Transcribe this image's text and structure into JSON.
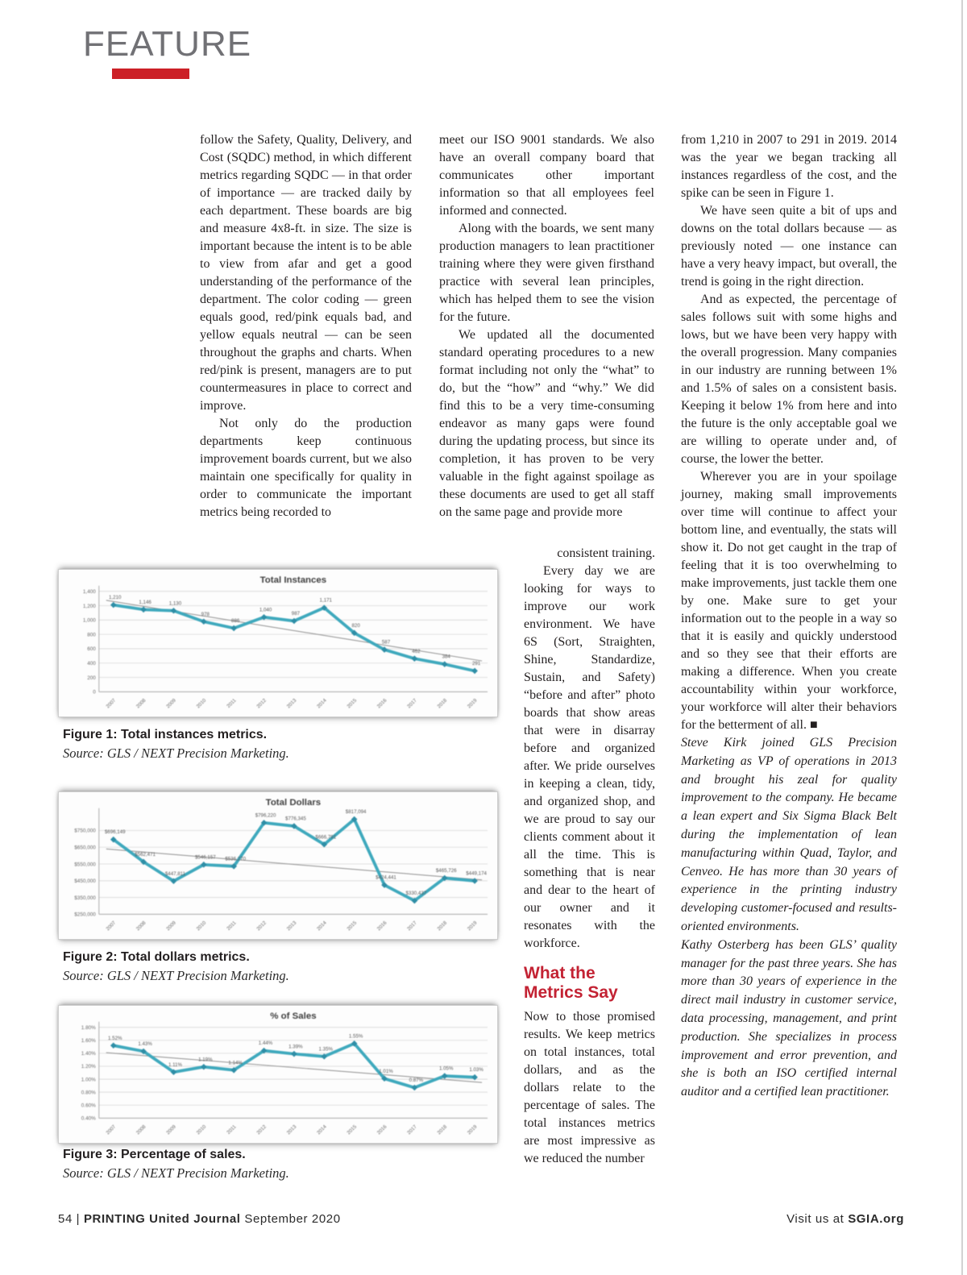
{
  "page": {
    "feature_label": "FEATURE",
    "accent_red": "#cc2027"
  },
  "article": {
    "col1": [
      "follow the Safety, Quality, Delivery, and Cost (SQDC) method, in which different metrics regarding SQDC — in that order of importance — are tracked daily by each department. These boards are big and measure 4x8-ft. in size. The size is important because the intent is to be able to view from afar and get a good understanding of the performance of the department. The color coding — green equals good, red/pink equals bad, and yellow equals neutral — can be seen throughout the graphs and charts. When red/pink is present, managers are to put countermeasures in place to correct and improve.",
      "Not only do the production departments keep continuous improvement boards current, but we also maintain one specifically for quality in order to communicate the important metrics being recorded to"
    ],
    "col2_wide": [
      "meet our ISO 9001 standards. We also have an overall company board that communicates other important information so that all employees feel informed and connected.",
      "Along with the boards, we sent many production managers to lean practitioner training where they were given firsthand practice with several lean principles, which has helped them to see the vision for the future.",
      "We updated all the documented standard operating procedures to a new format including not only the “what” to do, but the “how” and “why.” We did find this to be a very time-consuming endeavor as many gaps were found during the updating process, but since its completion, it has proven to be very valuable in the fight against spoilage as these documents are used to get all staff on the same page and provide more"
    ],
    "col2_narrow": {
      "continuation": "consistent training.",
      "para1": "Every day we are looking for ways to improve our work environment. We have 6S (Sort, Straighten, Shine, Standardize, Sustain, and Safety) “before and after” photo boards that show areas that were in disarray before and organized after. We pride ourselves in keeping a clean, tidy, and organized shop, and we are proud to say our clients comment about it all the time. This is something that is near and dear to the heart of our owner and it resonates with the workforce.",
      "heading_line1": "What the",
      "heading_line2": "Metrics Say",
      "para2": "Now to those promised results. We keep metrics on total instances, total dollars, and as the dollars relate to the percentage of sales. The total instances metrics are most impressive as we reduced the number"
    },
    "col3": [
      "from 1,210 in 2007 to 291 in 2019. 2014 was the year we began tracking all instances regardless of the cost, and the spike can be seen in Figure 1.",
      "We have seen quite a bit of ups and downs on the total dollars because — as previously noted — one instance can have a very heavy impact, but overall, the trend is going in the right direction.",
      "And as expected, the percentage of sales follows suit with some highs and lows, but we have been very happy with the overall progression. Many companies in our industry are running between 1% and 1.5% of sales on a consistent basis. Keeping it below 1% from here and into the future is the only acceptable goal we are willing to operate under and, of course, the lower the better.",
      "Wherever you are in your spoilage journey, making small improvements over time will continue to affect your bottom line, and eventually, the stats will show it. Do not get caught in the trap of feeling that it is too overwhelming to make improvements, just tackle them one by one. Make sure to get your information out to the people in a way so that it is easily and quickly understood and so they see that their efforts are making a difference. When you create accountability within your workforce, your workforce will alter their behaviors for the betterment of all. ■"
    ],
    "bio_steve": "Steve Kirk joined GLS Precision Marketing as VP of operations in 2013 and brought his zeal for quality improvement to the company. He became a lean expert and Six Sigma Black Belt during the implementation of lean manufacturing within Quad, Taylor, and Cenveo. He has more than 30 years of experience in the printing industry developing customer-focused and results-oriented environments.",
    "bio_kathy": "Kathy Osterberg has been GLS’ quality manager for the past three years. She has more than 30 years of experience in the direct mail industry in customer service, data processing, management, and print production. She specializes in process improvement and error prevention, and she is both an ISO certified internal auditor and a certified lean practitioner."
  },
  "figures": [
    {
      "caption": "Figure 1: Total instances metrics.",
      "source": "Source: GLS / NEXT Precision Marketing."
    },
    {
      "caption": "Figure 2: Total dollars metrics.",
      "source": "Source: GLS / NEXT Precision Marketing."
    },
    {
      "caption": "Figure 3: Percentage of sales.",
      "source": "Source: GLS / NEXT Precision Marketing."
    }
  ],
  "chart_data": [
    {
      "type": "line",
      "title": "Total Instances",
      "categories": [
        "2007",
        "2008",
        "2009",
        "2010",
        "2011",
        "2012",
        "2013",
        "2014",
        "2015",
        "2016",
        "2017",
        "2018",
        "2019"
      ],
      "series": [
        {
          "name": "Total Instances",
          "values": [
            1210,
            1146,
            1130,
            978,
            886,
            1040,
            987,
            1171,
            820,
            587,
            462,
            384,
            291
          ]
        }
      ],
      "data_labels": [
        "1,210",
        "1,146",
        "1,130",
        "978",
        "886",
        "1,040",
        "987",
        "1,171",
        "820",
        "587",
        "462",
        "384",
        "291"
      ],
      "ylim": [
        0,
        1400
      ],
      "yticks": [
        {
          "v": 1400,
          "label": "1,400"
        },
        {
          "v": 1200,
          "label": "1,200"
        },
        {
          "v": 1000,
          "label": "1,000"
        },
        {
          "v": 800,
          "label": "800"
        },
        {
          "v": 600,
          "label": "600"
        },
        {
          "v": 400,
          "label": "400"
        },
        {
          "v": 200,
          "label": "200"
        },
        {
          "v": 0,
          "label": "0"
        }
      ],
      "trend": [
        1275,
        430
      ],
      "grid": true,
      "legend": "none",
      "line_color": "#3fa9bd",
      "marker_color": "#2f8ea6",
      "trend_color": "#8f8f8f"
    },
    {
      "type": "line",
      "title": "Total Dollars",
      "categories": [
        "2007",
        "2008",
        "2009",
        "2010",
        "2011",
        "2012",
        "2013",
        "2014",
        "2015",
        "2016",
        "2017",
        "2018",
        "2019"
      ],
      "series": [
        {
          "name": "Total Dollars",
          "values": [
            696149,
            562471,
            447811,
            546157,
            536270,
            796220,
            776345,
            666791,
            817094,
            424441,
            330437,
            465726,
            449174
          ]
        }
      ],
      "data_labels": [
        "$696,149",
        "$562,471",
        "$447,811",
        "$546,157",
        "$536,270",
        "$796,220",
        "$776,345",
        "$666,791",
        "$817,094",
        "$424,441",
        "$330,437",
        "$465,726",
        "$449,174"
      ],
      "ylim": [
        250000,
        850000
      ],
      "yticks": [
        {
          "v": 750000,
          "label": "$750,000"
        },
        {
          "v": 650000,
          "label": "$650,000"
        },
        {
          "v": 550000,
          "label": "$550,000"
        },
        {
          "v": 450000,
          "label": "$450,000"
        },
        {
          "v": 350000,
          "label": "$350,000"
        },
        {
          "v": 250000,
          "label": "$250,000"
        }
      ],
      "trend": [
        640000,
        455000
      ],
      "grid": true,
      "legend": "none",
      "line_color": "#3fa9bd",
      "marker_color": "#2f8ea6",
      "trend_color": "#8f8f8f"
    },
    {
      "type": "line",
      "title": "% of Sales",
      "categories": [
        "2007",
        "2008",
        "2009",
        "2010",
        "2011",
        "2012",
        "2013",
        "2014",
        "2015",
        "2016",
        "2017",
        "2018",
        "2019"
      ],
      "series": [
        {
          "name": "% of Sales",
          "values": [
            1.52,
            1.43,
            1.11,
            1.19,
            1.14,
            1.44,
            1.39,
            1.35,
            1.55,
            1.01,
            0.87,
            1.05,
            1.03
          ]
        }
      ],
      "data_labels": [
        "1.52%",
        "1.43%",
        "1.11%",
        "1.19%",
        "1.14%",
        "1.44%",
        "1.39%",
        "1.35%",
        "1.55%",
        "1.01%",
        "0.87%",
        "1.05%",
        "1.03%"
      ],
      "ylim": [
        0.4,
        1.8
      ],
      "yticks": [
        {
          "v": 1.8,
          "label": "1.80%"
        },
        {
          "v": 1.6,
          "label": "1.60%"
        },
        {
          "v": 1.4,
          "label": "1.40%"
        },
        {
          "v": 1.2,
          "label": "1.20%"
        },
        {
          "v": 1.0,
          "label": "1.00%"
        },
        {
          "v": 0.8,
          "label": "0.80%"
        },
        {
          "v": 0.6,
          "label": "0.60%"
        },
        {
          "v": 0.4,
          "label": "0.40%"
        }
      ],
      "trend": [
        1.41,
        0.95
      ],
      "grid": true,
      "legend": "none",
      "line_color": "#3fa9bd",
      "marker_color": "#2f8ea6",
      "trend_color": "#8f8f8f"
    }
  ],
  "footer": {
    "page_number": "54",
    "separator": "| ",
    "journal": "PRINTING United Journal",
    "issue_date": " September 2020",
    "visit_prefix": "Visit us at ",
    "site": "SGIA.org"
  }
}
